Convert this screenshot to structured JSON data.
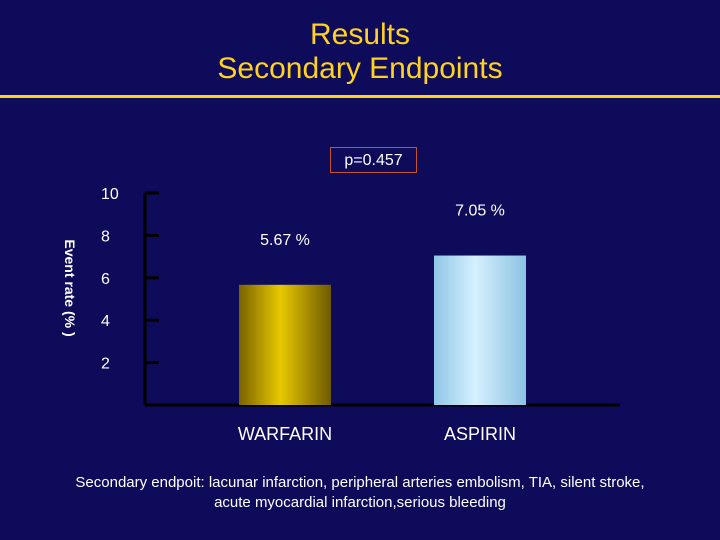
{
  "slide": {
    "title_line1": "Results",
    "title_line2": "Secondary Endpoints",
    "footnote_line1": "Secondary endpoit:  lacunar infarction, peripheral arteries embolism, TIA, silent stroke,",
    "footnote_line2": "acute myocardial infarction,serious bleeding"
  },
  "colors": {
    "background": "#0d0b5a",
    "title": "#ffd21f",
    "warfarin_bar": "#c9a800",
    "aspirin_bar": "#bfe3f7"
  },
  "chart_data": {
    "type": "bar",
    "title": "",
    "ylabel": "Event rate  (% )",
    "xlabel": "",
    "categories": [
      "WARFARIN",
      "ASPIRIN"
    ],
    "values": [
      5.67,
      7.05
    ],
    "value_labels": [
      "5.67 %",
      "7.05 %"
    ],
    "ylim": [
      0,
      10
    ],
    "yticks": [
      2,
      4,
      6,
      8,
      10
    ],
    "annotation": "p=0.457",
    "grid": false,
    "legend": "none"
  }
}
